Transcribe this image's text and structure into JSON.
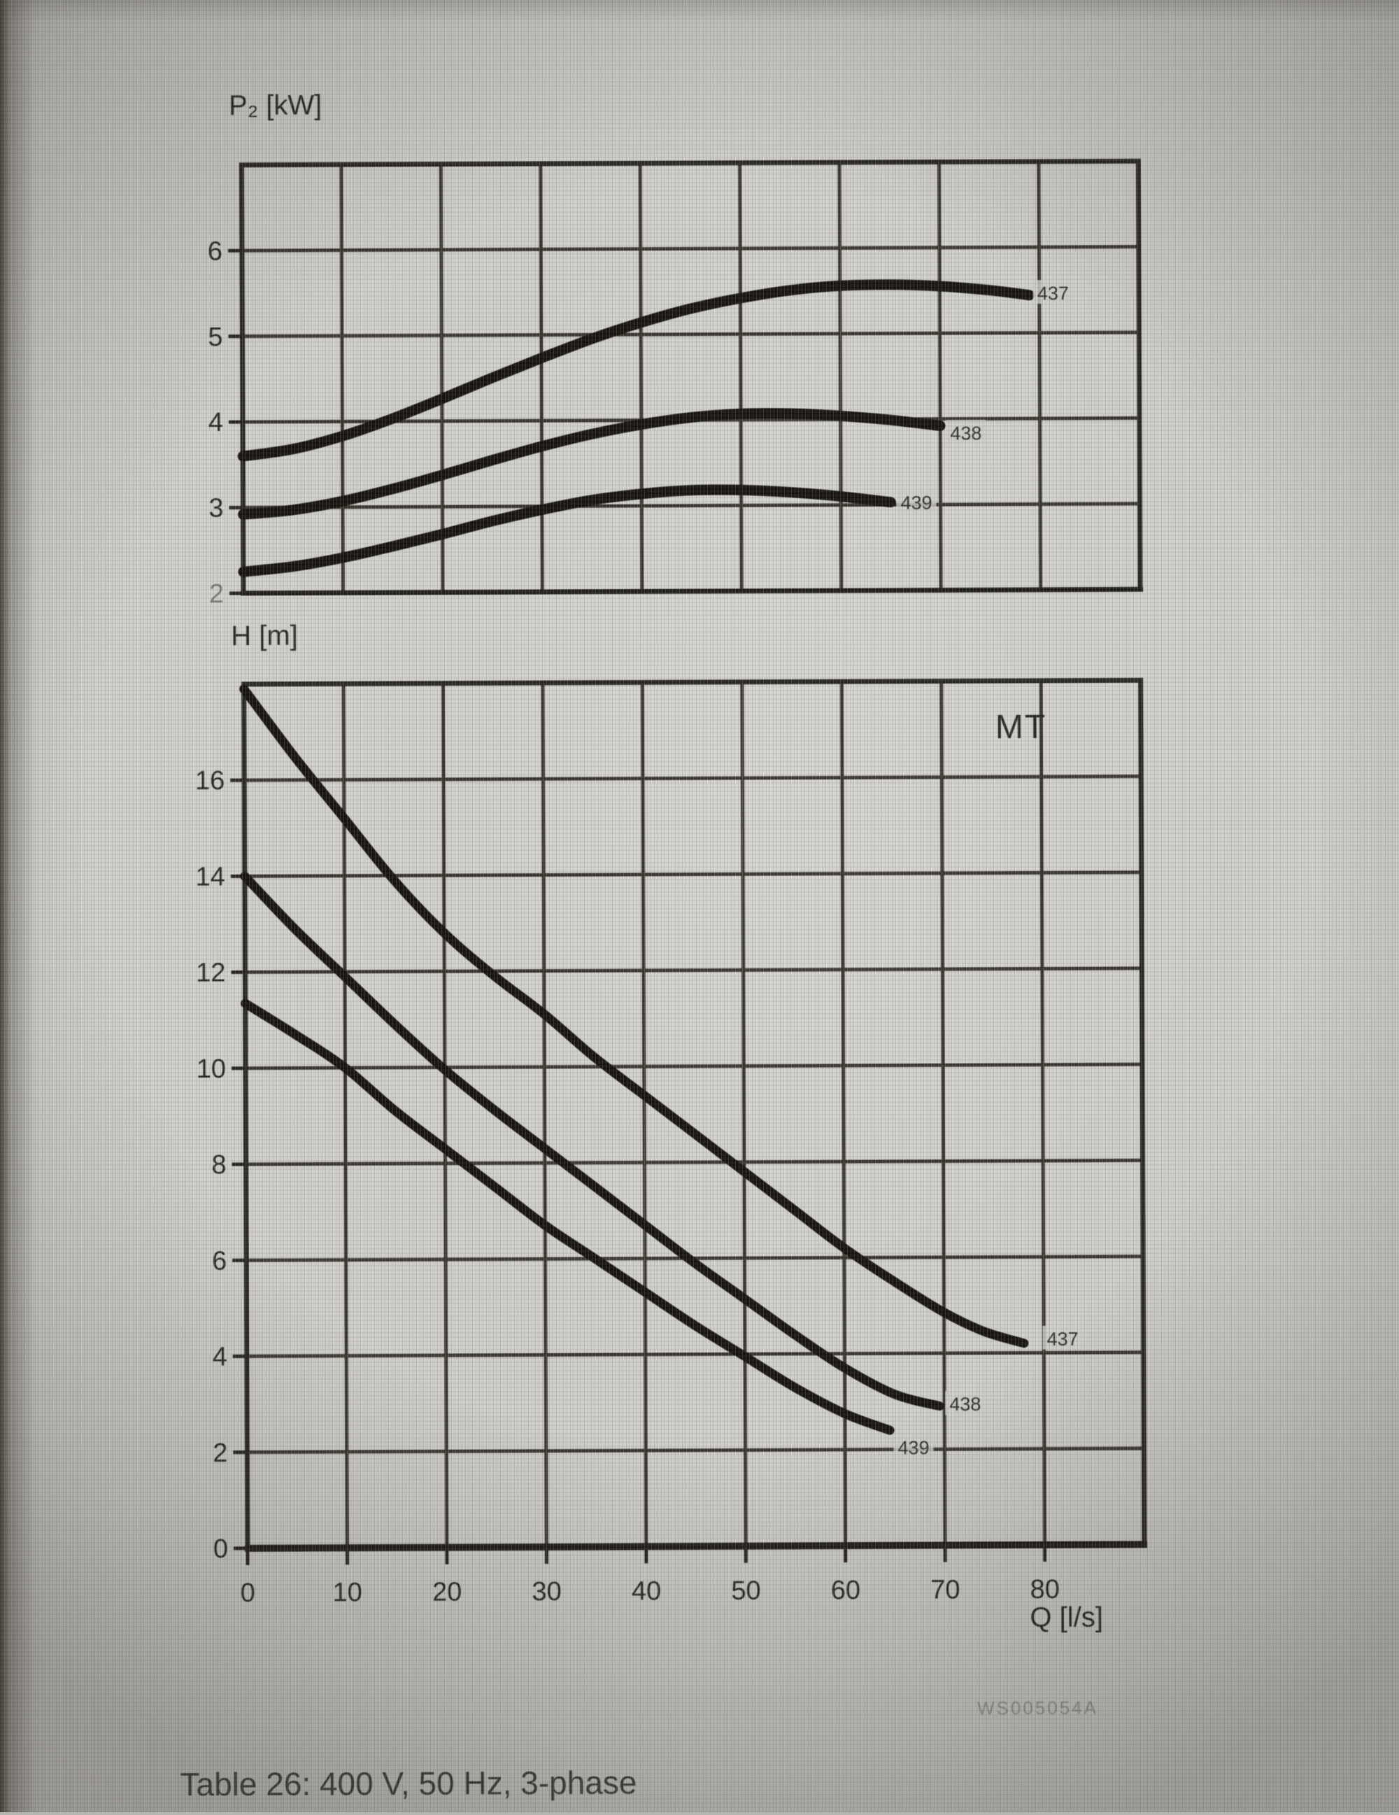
{
  "page": {
    "caption": "Table 26: 400 V, 50 Hz, 3-phase",
    "watermark": "WS005054A"
  },
  "colors": {
    "ink": "#15120d",
    "grid": "#37332c",
    "background": "#cac9c5",
    "watermark": "#8f8e8a"
  },
  "chart_data": [
    {
      "id": "p2-vs-q",
      "type": "line",
      "title": "",
      "ylabel": "P₂ [kW]",
      "xlabel": "",
      "xlim": [
        0,
        90
      ],
      "ylim": [
        2,
        7
      ],
      "grid": "on",
      "legend": "none",
      "xgrid": [
        10,
        20,
        30,
        40,
        50,
        60,
        70,
        80
      ],
      "ygrid": [
        3,
        4,
        5,
        6
      ],
      "xticks": [],
      "yticks": [
        {
          "v": 6,
          "t": "6"
        },
        {
          "v": 5,
          "t": "5"
        },
        {
          "v": 4,
          "t": "4"
        },
        {
          "v": 3,
          "t": "3"
        },
        {
          "v": 2,
          "t": "2",
          "faint": true
        }
      ],
      "series": [
        {
          "name": "437",
          "label_at": [
            79.8,
            5.47
          ],
          "points": [
            [
              0,
              3.6
            ],
            [
              5,
              3.68
            ],
            [
              10,
              3.83
            ],
            [
              15,
              4.03
            ],
            [
              20,
              4.26
            ],
            [
              25,
              4.5
            ],
            [
              30,
              4.73
            ],
            [
              35,
              4.95
            ],
            [
              40,
              5.14
            ],
            [
              45,
              5.3
            ],
            [
              50,
              5.42
            ],
            [
              55,
              5.51
            ],
            [
              60,
              5.56
            ],
            [
              65,
              5.57
            ],
            [
              70,
              5.55
            ],
            [
              75,
              5.5
            ],
            [
              79,
              5.44
            ]
          ]
        },
        {
          "name": "438",
          "label_at": [
            71.0,
            3.84
          ],
          "points": [
            [
              0,
              2.92
            ],
            [
              5,
              2.97
            ],
            [
              10,
              3.07
            ],
            [
              15,
              3.21
            ],
            [
              20,
              3.37
            ],
            [
              25,
              3.54
            ],
            [
              30,
              3.7
            ],
            [
              35,
              3.84
            ],
            [
              40,
              3.95
            ],
            [
              45,
              4.03
            ],
            [
              50,
              4.07
            ],
            [
              55,
              4.07
            ],
            [
              60,
              4.04
            ],
            [
              65,
              3.99
            ],
            [
              70,
              3.92
            ]
          ]
        },
        {
          "name": "439",
          "label_at": [
            66.0,
            3.03
          ],
          "points": [
            [
              0,
              2.25
            ],
            [
              5,
              2.31
            ],
            [
              10,
              2.41
            ],
            [
              15,
              2.54
            ],
            [
              20,
              2.68
            ],
            [
              25,
              2.83
            ],
            [
              30,
              2.96
            ],
            [
              35,
              3.07
            ],
            [
              40,
              3.14
            ],
            [
              45,
              3.18
            ],
            [
              50,
              3.18
            ],
            [
              55,
              3.15
            ],
            [
              60,
              3.1
            ],
            [
              65,
              3.03
            ]
          ]
        }
      ]
    },
    {
      "id": "h-vs-q",
      "type": "line",
      "title": "",
      "ylabel": "H [m]",
      "xlabel": "Q [l/s]",
      "annotation": "MT",
      "xlim": [
        0,
        90
      ],
      "ylim": [
        0,
        18
      ],
      "grid": "on",
      "legend": "none",
      "xgrid": [
        10,
        20,
        30,
        40,
        50,
        60,
        70,
        80
      ],
      "ygrid": [
        2,
        4,
        6,
        8,
        10,
        12,
        14,
        16
      ],
      "xticks": [
        {
          "v": 0,
          "t": "0"
        },
        {
          "v": 10,
          "t": "10"
        },
        {
          "v": 20,
          "t": "20"
        },
        {
          "v": 30,
          "t": "30"
        },
        {
          "v": 40,
          "t": "40"
        },
        {
          "v": 50,
          "t": "50"
        },
        {
          "v": 60,
          "t": "60"
        },
        {
          "v": 70,
          "t": "70"
        },
        {
          "v": 80,
          "t": "80"
        }
      ],
      "yticks": [
        {
          "v": 16,
          "t": "16"
        },
        {
          "v": 14,
          "t": "14"
        },
        {
          "v": 12,
          "t": "12"
        },
        {
          "v": 10,
          "t": "10"
        },
        {
          "v": 8,
          "t": "8"
        },
        {
          "v": 6,
          "t": "6"
        },
        {
          "v": 4,
          "t": "4"
        },
        {
          "v": 2,
          "t": "2"
        },
        {
          "v": 0,
          "t": "0"
        }
      ],
      "series": [
        {
          "name": "437",
          "label_at": [
            80.3,
            4.3
          ],
          "points": [
            [
              0,
              17.9
            ],
            [
              5,
              16.5
            ],
            [
              10,
              15.2
            ],
            [
              15,
              13.9
            ],
            [
              20,
              12.8
            ],
            [
              25,
              11.9
            ],
            [
              30,
              11.1
            ],
            [
              35,
              10.2
            ],
            [
              40,
              9.4
            ],
            [
              45,
              8.6
            ],
            [
              50,
              7.8
            ],
            [
              55,
              7.0
            ],
            [
              60,
              6.2
            ],
            [
              65,
              5.5
            ],
            [
              70,
              4.85
            ],
            [
              74,
              4.45
            ],
            [
              78,
              4.2
            ]
          ]
        },
        {
          "name": "438",
          "label_at": [
            70.5,
            2.95
          ],
          "points": [
            [
              0,
              14.0
            ],
            [
              5,
              12.9
            ],
            [
              10,
              11.9
            ],
            [
              15,
              10.9
            ],
            [
              20,
              9.95
            ],
            [
              25,
              9.1
            ],
            [
              30,
              8.3
            ],
            [
              35,
              7.5
            ],
            [
              40,
              6.7
            ],
            [
              45,
              5.9
            ],
            [
              50,
              5.15
            ],
            [
              55,
              4.4
            ],
            [
              60,
              3.7
            ],
            [
              65,
              3.15
            ],
            [
              69.5,
              2.9
            ]
          ]
        },
        {
          "name": "439",
          "label_at": [
            65.3,
            2.05
          ],
          "points": [
            [
              0,
              11.35
            ],
            [
              5,
              10.7
            ],
            [
              10,
              10.0
            ],
            [
              15,
              9.1
            ],
            [
              20,
              8.3
            ],
            [
              25,
              7.5
            ],
            [
              30,
              6.7
            ],
            [
              35,
              6.0
            ],
            [
              40,
              5.3
            ],
            [
              45,
              4.6
            ],
            [
              50,
              3.95
            ],
            [
              55,
              3.3
            ],
            [
              60,
              2.75
            ],
            [
              64.5,
              2.4
            ]
          ]
        }
      ]
    }
  ]
}
